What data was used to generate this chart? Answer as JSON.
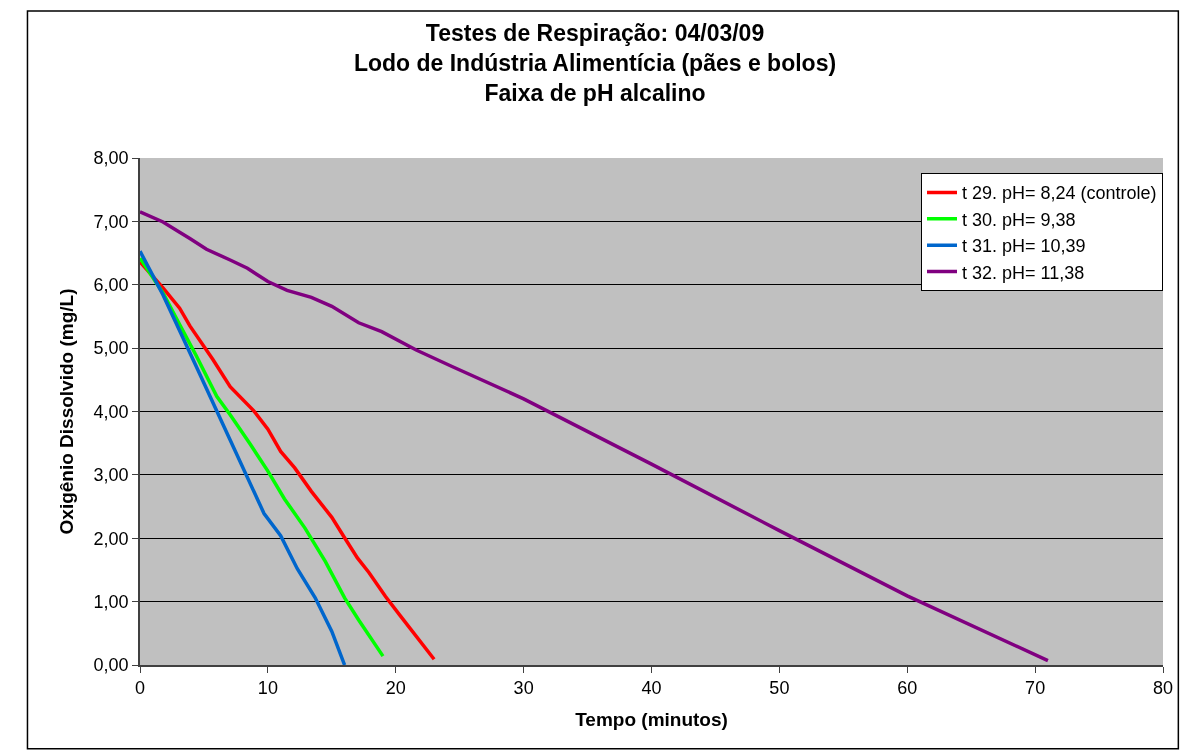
{
  "chart_data": {
    "type": "line",
    "title": "Testes de Respiração: 04/03/09\nLodo de Indústria Alimentícia (pães e bolos)\nFaixa de pH alcalino",
    "xlabel": "Tempo (minutos)",
    "ylabel": "Oxigênio Dissolvido (mg/L)",
    "xlim": [
      0,
      80
    ],
    "xticks": [
      0,
      10,
      20,
      30,
      40,
      50,
      60,
      70,
      80
    ],
    "ylim": [
      0,
      8
    ],
    "yticks": [
      {
        "value": 0,
        "label": "0,00"
      },
      {
        "value": 1,
        "label": "1,00"
      },
      {
        "value": 2,
        "label": "2,00"
      },
      {
        "value": 3,
        "label": "3,00"
      },
      {
        "value": 4,
        "label": "4,00"
      },
      {
        "value": 5,
        "label": "5,00"
      },
      {
        "value": 6,
        "label": "6,00"
      },
      {
        "value": 7,
        "label": "7,00"
      },
      {
        "value": 8,
        "label": "8,00"
      }
    ],
    "grid": "y",
    "legend": "top right",
    "marker": "none",
    "line_style": "solid",
    "series": [
      {
        "name": "t 29. pH= 8,24 (controle)",
        "color": "#ff0000",
        "x": [
          0,
          1.8,
          3.1,
          3.9,
          5.7,
          7.05,
          8.9,
          10,
          11,
          12.1,
          13.4,
          15,
          15.9,
          17,
          17.9,
          19.2,
          20.3,
          23
        ],
        "values": [
          6.36,
          5.95,
          5.63,
          5.35,
          4.82,
          4.39,
          4.01,
          3.72,
          3.37,
          3.11,
          2.74,
          2.33,
          2.04,
          1.69,
          1.46,
          1.08,
          0.79,
          0.09
        ]
      },
      {
        "name": "t 30. pH= 9,38",
        "color": "#00ff00",
        "x": [
          0,
          1.8,
          3.1,
          4.4,
          6,
          7.05,
          8.6,
          10,
          11.3,
          12.9,
          14.5,
          16,
          17.1,
          19
        ],
        "values": [
          6.42,
          5.87,
          5.37,
          4.88,
          4.24,
          3.95,
          3.49,
          3.06,
          2.62,
          2.16,
          1.63,
          1.06,
          0.71,
          0.14
        ]
      },
      {
        "name": "t 31. pH= 10,39",
        "color": "#0066cc",
        "x": [
          0,
          1.8,
          4.4,
          7.05,
          9.7,
          11,
          12.3,
          13.7,
          15,
          16
        ],
        "values": [
          6.53,
          5.84,
          4.71,
          3.55,
          2.39,
          2.04,
          1.52,
          1.06,
          0.53,
          0.0
        ]
      },
      {
        "name": "t 32. pH= 11,38",
        "color": "#800080",
        "x": [
          0,
          1.8,
          3.1,
          3.9,
          5.2,
          7.05,
          8.4,
          10,
          11.5,
          13.4,
          15,
          17.1,
          18.9,
          21.6,
          24.4,
          30,
          40,
          50,
          60,
          71
        ],
        "values": [
          7.15,
          6.99,
          6.83,
          6.73,
          6.56,
          6.39,
          6.26,
          6.05,
          5.91,
          5.8,
          5.66,
          5.4,
          5.26,
          4.97,
          4.71,
          4.2,
          3.17,
          2.12,
          1.09,
          0.07
        ]
      }
    ]
  }
}
